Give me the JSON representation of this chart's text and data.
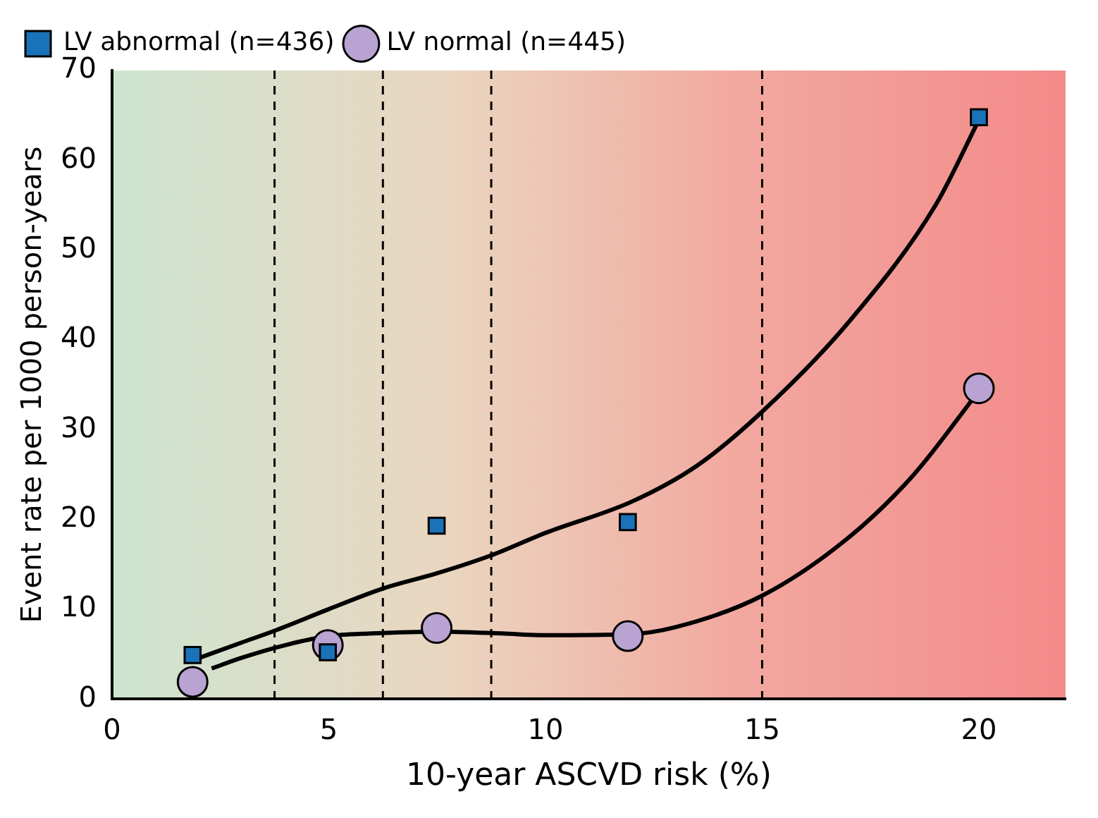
{
  "chart_data": {
    "type": "scatter",
    "xlabel": "10-year ASCVD risk (%)",
    "ylabel": "Event rate per 1000 person-years",
    "x": [
      1.86,
      4.98,
      7.49,
      11.9,
      20
    ],
    "xlim": [
      0,
      22
    ],
    "xticks": [
      0,
      5,
      10,
      15,
      20
    ],
    "ylim": [
      0,
      70
    ],
    "yticks": [
      0,
      10,
      20,
      30,
      40,
      50,
      60,
      70
    ],
    "grid": false,
    "legend": "top left",
    "series": [
      {
        "type": "line",
        "color": "#000000",
        "x": [
          1.86,
          3,
          3.75,
          5,
          6.25,
          7.5,
          8.75,
          10,
          12,
          13.5,
          15,
          17,
          19,
          20
        ],
        "values": [
          4.3,
          6.3,
          7.6,
          10,
          12.3,
          14,
          16,
          18.5,
          22,
          26,
          32,
          42,
          55,
          64.5
        ]
      },
      {
        "type": "line",
        "color": "#000000",
        "x": [
          2.3,
          3,
          4,
          5,
          6,
          7.5,
          9,
          10,
          11.9,
          13,
          15,
          17,
          18.5,
          20
        ],
        "values": [
          3.4,
          4.6,
          6,
          7,
          7.3,
          7.5,
          7.3,
          7.1,
          7.2,
          8,
          11.5,
          18,
          25,
          34.3
        ]
      },
      {
        "name": "LV abnormal (n=436)",
        "color": "#1a72b8",
        "marker": "square",
        "values": [
          4.9,
          5.2,
          19.3,
          19.7,
          64.8
        ]
      },
      {
        "name": "LV normal (n=445)",
        "color": "#b9a3d3",
        "marker": "circle",
        "values": [
          1.9,
          6.0,
          7.9,
          7.0,
          34.6
        ]
      }
    ],
    "ref_lines": [
      {
        "axis": "x",
        "value": 3.75,
        "line_style": "dashed"
      },
      {
        "axis": "x",
        "value": 6.25,
        "line_style": "dashed"
      },
      {
        "axis": "x",
        "value": 8.75,
        "line_style": "dashed"
      },
      {
        "axis": "x",
        "value": 15,
        "line_style": "dashed"
      }
    ]
  }
}
